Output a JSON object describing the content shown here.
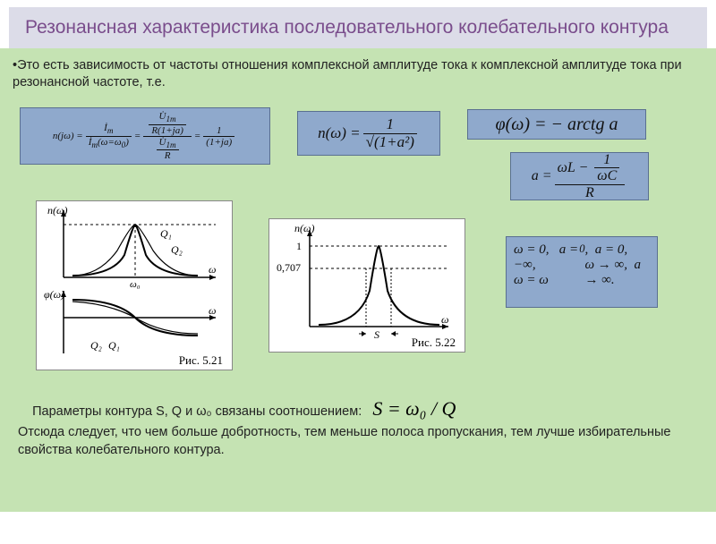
{
  "title": "Резонансная характеристика последовательного колебательного контура",
  "intro": "•Это есть зависимость от частоты отношения комплексной амплитуде тока к комплексной амплитуде тока при резонансной частоте, т.е.",
  "formulas": {
    "f1_html": "n(jω) = <span class='frac'><span class='num'>I&#775;<sub>m</sub></span><span class='den'>I&#775;<sub>m</sub>(ω=ω<sub>0</sub>)</span></span> = <span class='frac'><span class='num'><span class='frac'><span class='num'>U&#775;<sub>1m</sub></span><span class='den'>R(1+ja)</span></span></span><span class='den'><span class='frac'><span class='num'>U&#775;<sub>1m</sub></span><span class='den'>R</span></span></span></span> = <span class='frac'><span class='num'>1</span><span class='den'>(1+ja)</span></span>",
    "f2_html": "n(ω) = <span class='frac'><span class='num'>1</span><span class='den'>√(1+a²)</span></span>",
    "f3_html": "φ(ω) = − arctg a",
    "f4_html": "a = <span class='frac'><span class='num'>ωL − <span class='frac'><span class='num'>1</span><span class='den'>ωC</span></span></span><span class='den'>R</span></span>",
    "f5_html": "ω = 0,&nbsp;&nbsp; a = −∞,<br>ω = ω<sub>0</sub>,&nbsp; a = 0,<br>ω → ∞,&nbsp; a → ∞."
  },
  "figures": {
    "fig1_label": "Рис. 5.21",
    "fig2_label": "Рис. 5.22",
    "fig1": {
      "ylabel_top": "n(ω)",
      "ylabel_bot": "φ(ω)",
      "xlabel": "ω",
      "x0": "ω₀",
      "q1": "Q₁",
      "q2": "Q₂",
      "axis_color": "#000",
      "curve_color": "#000"
    },
    "fig2": {
      "ylabel": "n(ω)",
      "xlabel": "ω",
      "peak": "1",
      "lvl": "0,707",
      "slabel": "S",
      "axis_color": "#000",
      "curve_color": "#000"
    }
  },
  "bottom": {
    "params_text": "Параметры контура S, Q и ω₀ связаны соотношением:",
    "relation": "S = ω₀ / Q",
    "conclusion": "Отсюда следует, что чем больше добротность, тем меньше полоса пропускания, тем лучше избирательные свойства колебательного контура."
  },
  "colors": {
    "title_bg": "#dcdce8",
    "title_fg": "#7a4d8c",
    "content_bg": "#c5e3b3",
    "formula_bg": "#8fa9cc",
    "chart_bg": "#ffffff"
  }
}
